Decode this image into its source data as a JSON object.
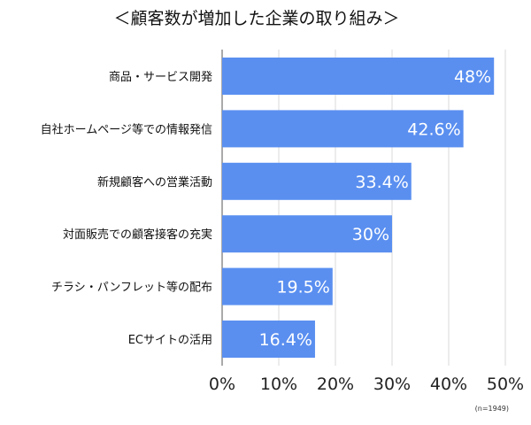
{
  "chart_data": {
    "type": "bar",
    "orientation": "horizontal",
    "title": "＜顧客数が増加した企業の取り組み＞",
    "categories": [
      "商品・サービス開発",
      "自社ホームページ等での情報発信",
      "新規顧客への営業活動",
      "対面販売での顧客接客の充実",
      "チラシ・パンフレット等の配布",
      "ECサイトの活用"
    ],
    "values": [
      48,
      42.6,
      33.4,
      30,
      19.5,
      16.4
    ],
    "value_labels": [
      "48%",
      "42.6%",
      "33.4%",
      "30%",
      "19.5%",
      "16.4%"
    ],
    "xlim": [
      0,
      50
    ],
    "xticks": [
      0,
      10,
      20,
      30,
      40,
      50
    ],
    "xtick_labels": [
      "0%",
      "10%",
      "20%",
      "30%",
      "40%",
      "50%"
    ],
    "grid": true,
    "xlabel": "",
    "ylabel": "",
    "note": "(n=1949)",
    "bar_color": "#5a8ff0",
    "grid_color": "#d8d8d8"
  }
}
